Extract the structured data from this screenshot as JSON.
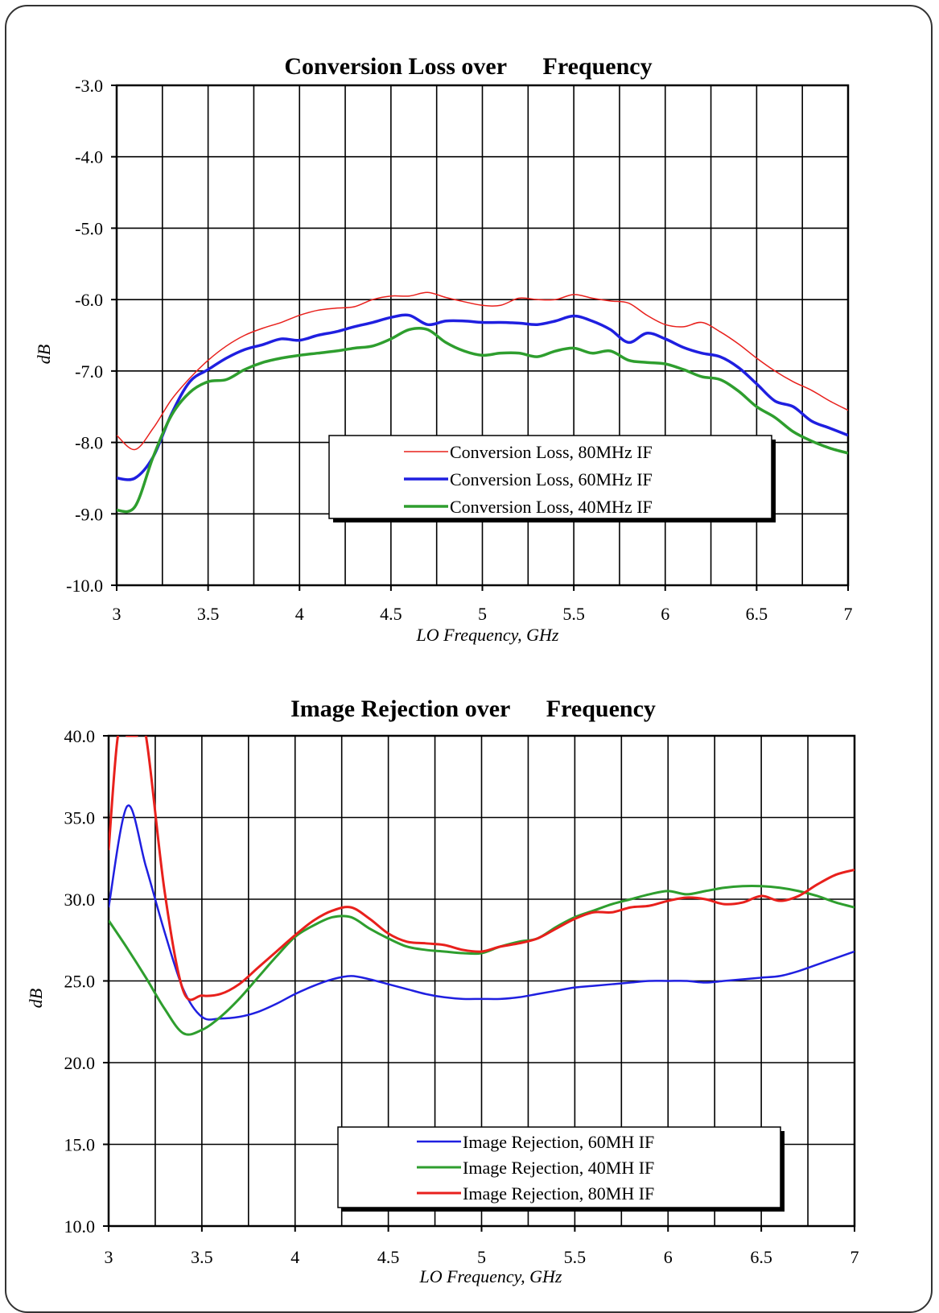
{
  "chart_data": [
    {
      "type": "line",
      "title": "Conversion Loss over      Frequency",
      "xlabel": "LO Frequency, GHz",
      "ylabel": "dB",
      "xlim": [
        3,
        7
      ],
      "ylim": [
        -10.0,
        -3.0
      ],
      "x_ticks": [
        "3",
        "3.5",
        "4",
        "4.5",
        "5",
        "5.5",
        "6",
        "6.5",
        "7"
      ],
      "y_ticks": [
        "-3.0",
        "-4.0",
        "-5.0",
        "-6.0",
        "-7.0",
        "-8.0",
        "-9.0",
        "-10.0"
      ],
      "grid": true,
      "legend_position": "lower-right",
      "series": [
        {
          "name": "Conversion Loss, 80MHz IF",
          "color": "#e8201c",
          "width": 1.5,
          "x": [
            3.0,
            3.1,
            3.2,
            3.3,
            3.4,
            3.5,
            3.6,
            3.7,
            3.8,
            3.9,
            4.0,
            4.1,
            4.2,
            4.3,
            4.4,
            4.5,
            4.6,
            4.7,
            4.8,
            4.9,
            5.0,
            5.1,
            5.2,
            5.3,
            5.4,
            5.5,
            5.6,
            5.7,
            5.8,
            5.9,
            6.0,
            6.1,
            6.2,
            6.3,
            6.4,
            6.5,
            6.6,
            6.7,
            6.8,
            6.9,
            7.0
          ],
          "y": [
            -7.9,
            -8.1,
            -7.8,
            -7.4,
            -7.1,
            -6.85,
            -6.65,
            -6.5,
            -6.4,
            -6.32,
            -6.22,
            -6.15,
            -6.12,
            -6.1,
            -6.0,
            -5.95,
            -5.95,
            -5.9,
            -5.97,
            -6.03,
            -6.08,
            -6.08,
            -5.98,
            -6.0,
            -6.0,
            -5.93,
            -5.98,
            -6.02,
            -6.05,
            -6.22,
            -6.35,
            -6.38,
            -6.32,
            -6.45,
            -6.62,
            -6.82,
            -7.0,
            -7.15,
            -7.27,
            -7.42,
            -7.55
          ]
        },
        {
          "name": "Conversion Loss, 60MHz IF",
          "color": "#1f1fe0",
          "width": 3.5,
          "x": [
            3.0,
            3.1,
            3.2,
            3.3,
            3.4,
            3.5,
            3.6,
            3.7,
            3.8,
            3.9,
            4.0,
            4.1,
            4.2,
            4.3,
            4.4,
            4.5,
            4.6,
            4.7,
            4.8,
            4.9,
            5.0,
            5.1,
            5.2,
            5.3,
            5.4,
            5.5,
            5.6,
            5.7,
            5.8,
            5.9,
            6.0,
            6.1,
            6.2,
            6.3,
            6.4,
            6.5,
            6.6,
            6.7,
            6.8,
            6.9,
            7.0
          ],
          "y": [
            -8.5,
            -8.5,
            -8.2,
            -7.6,
            -7.15,
            -6.98,
            -6.82,
            -6.7,
            -6.63,
            -6.55,
            -6.57,
            -6.5,
            -6.45,
            -6.38,
            -6.32,
            -6.25,
            -6.22,
            -6.35,
            -6.3,
            -6.3,
            -6.32,
            -6.32,
            -6.33,
            -6.35,
            -6.3,
            -6.23,
            -6.3,
            -6.42,
            -6.6,
            -6.47,
            -6.55,
            -6.67,
            -6.75,
            -6.8,
            -6.95,
            -7.18,
            -7.42,
            -7.5,
            -7.7,
            -7.8,
            -7.9
          ]
        },
        {
          "name": "Conversion Loss, 40MHz IF",
          "color": "#2e9e2e",
          "width": 3.5,
          "x": [
            3.0,
            3.1,
            3.2,
            3.3,
            3.4,
            3.5,
            3.6,
            3.7,
            3.8,
            3.9,
            4.0,
            4.1,
            4.2,
            4.3,
            4.4,
            4.5,
            4.6,
            4.7,
            4.8,
            4.9,
            5.0,
            5.1,
            5.2,
            5.3,
            5.4,
            5.5,
            5.6,
            5.7,
            5.8,
            5.9,
            6.0,
            6.1,
            6.2,
            6.3,
            6.4,
            6.5,
            6.6,
            6.7,
            6.8,
            6.9,
            7.0
          ],
          "y": [
            -8.95,
            -8.9,
            -8.2,
            -7.62,
            -7.3,
            -7.15,
            -7.12,
            -6.98,
            -6.88,
            -6.82,
            -6.78,
            -6.75,
            -6.72,
            -6.68,
            -6.65,
            -6.55,
            -6.42,
            -6.42,
            -6.6,
            -6.72,
            -6.78,
            -6.75,
            -6.75,
            -6.8,
            -6.72,
            -6.68,
            -6.75,
            -6.72,
            -6.85,
            -6.88,
            -6.9,
            -6.98,
            -7.08,
            -7.12,
            -7.28,
            -7.5,
            -7.65,
            -7.85,
            -7.98,
            -8.08,
            -8.15
          ]
        }
      ]
    },
    {
      "type": "line",
      "title": "Image Rejection over      Frequency",
      "xlabel": "LO Frequency, GHz",
      "ylabel": "dB",
      "xlim": [
        3,
        7
      ],
      "ylim": [
        10.0,
        40.0
      ],
      "x_ticks": [
        "3",
        "3.5",
        "4",
        "4.5",
        "5",
        "5.5",
        "6",
        "6.5",
        "7"
      ],
      "y_ticks": [
        "40.0",
        "35.0",
        "30.0",
        "25.0",
        "20.0",
        "15.0",
        "10.0"
      ],
      "grid": true,
      "legend_position": "lower-right",
      "series": [
        {
          "name": "Image Rejection, 60MH IF",
          "color": "#1f1fe0",
          "width": 2.5,
          "x": [
            3.0,
            3.1,
            3.2,
            3.3,
            3.4,
            3.5,
            3.6,
            3.7,
            3.8,
            3.9,
            4.0,
            4.1,
            4.2,
            4.3,
            4.4,
            4.5,
            4.6,
            4.7,
            4.8,
            4.9,
            5.0,
            5.1,
            5.2,
            5.3,
            5.4,
            5.5,
            5.6,
            5.7,
            5.8,
            5.9,
            6.0,
            6.1,
            6.2,
            6.3,
            6.4,
            6.5,
            6.6,
            6.7,
            6.8,
            6.9,
            7.0
          ],
          "y": [
            29.5,
            35.7,
            32.0,
            28.0,
            24.5,
            22.8,
            22.7,
            22.8,
            23.1,
            23.6,
            24.2,
            24.7,
            25.1,
            25.3,
            25.1,
            24.8,
            24.5,
            24.2,
            24.0,
            23.9,
            23.9,
            23.9,
            24.0,
            24.2,
            24.4,
            24.6,
            24.7,
            24.8,
            24.9,
            25.0,
            25.0,
            25.0,
            24.9,
            25.0,
            25.1,
            25.2,
            25.3,
            25.6,
            26.0,
            26.4,
            26.8
          ]
        },
        {
          "name": "Image Rejection, 40MH IF",
          "color": "#2e9e2e",
          "width": 3.0,
          "x": [
            3.0,
            3.1,
            3.2,
            3.3,
            3.4,
            3.5,
            3.6,
            3.7,
            3.8,
            3.9,
            4.0,
            4.1,
            4.2,
            4.3,
            4.4,
            4.5,
            4.6,
            4.7,
            4.8,
            4.9,
            5.0,
            5.1,
            5.2,
            5.3,
            5.4,
            5.5,
            5.6,
            5.7,
            5.8,
            5.9,
            6.0,
            6.1,
            6.2,
            6.3,
            6.4,
            6.5,
            6.6,
            6.7,
            6.8,
            6.9,
            7.0
          ],
          "y": [
            28.7,
            27.0,
            25.2,
            23.3,
            21.8,
            22.0,
            22.8,
            23.9,
            25.2,
            26.5,
            27.7,
            28.4,
            28.9,
            28.9,
            28.2,
            27.6,
            27.1,
            26.9,
            26.8,
            26.7,
            26.7,
            27.1,
            27.4,
            27.6,
            28.3,
            28.9,
            29.3,
            29.7,
            30.0,
            30.3,
            30.5,
            30.3,
            30.5,
            30.7,
            30.8,
            30.8,
            30.7,
            30.5,
            30.2,
            29.8,
            29.5
          ]
        },
        {
          "name": "Image Rejection, 80MH IF",
          "color": "#e8201c",
          "width": 3.0,
          "x": [
            3.0,
            3.05,
            3.1,
            3.15,
            3.2,
            3.3,
            3.4,
            3.5,
            3.6,
            3.7,
            3.8,
            3.9,
            4.0,
            4.1,
            4.2,
            4.3,
            4.4,
            4.5,
            4.6,
            4.7,
            4.8,
            4.9,
            5.0,
            5.1,
            5.2,
            5.3,
            5.4,
            5.5,
            5.6,
            5.7,
            5.8,
            5.9,
            6.0,
            6.1,
            6.2,
            6.3,
            6.4,
            6.5,
            6.6,
            6.7,
            6.8,
            6.9,
            7.0
          ],
          "y": [
            33.0,
            40.0,
            40.0,
            40.0,
            40.0,
            30.5,
            24.4,
            24.1,
            24.2,
            24.8,
            25.8,
            26.8,
            27.8,
            28.7,
            29.3,
            29.5,
            28.8,
            27.9,
            27.4,
            27.3,
            27.2,
            26.9,
            26.8,
            27.1,
            27.3,
            27.6,
            28.2,
            28.8,
            29.2,
            29.2,
            29.5,
            29.6,
            29.9,
            30.1,
            30.0,
            29.7,
            29.8,
            30.2,
            29.9,
            30.2,
            30.9,
            31.5,
            31.8
          ]
        }
      ]
    }
  ]
}
